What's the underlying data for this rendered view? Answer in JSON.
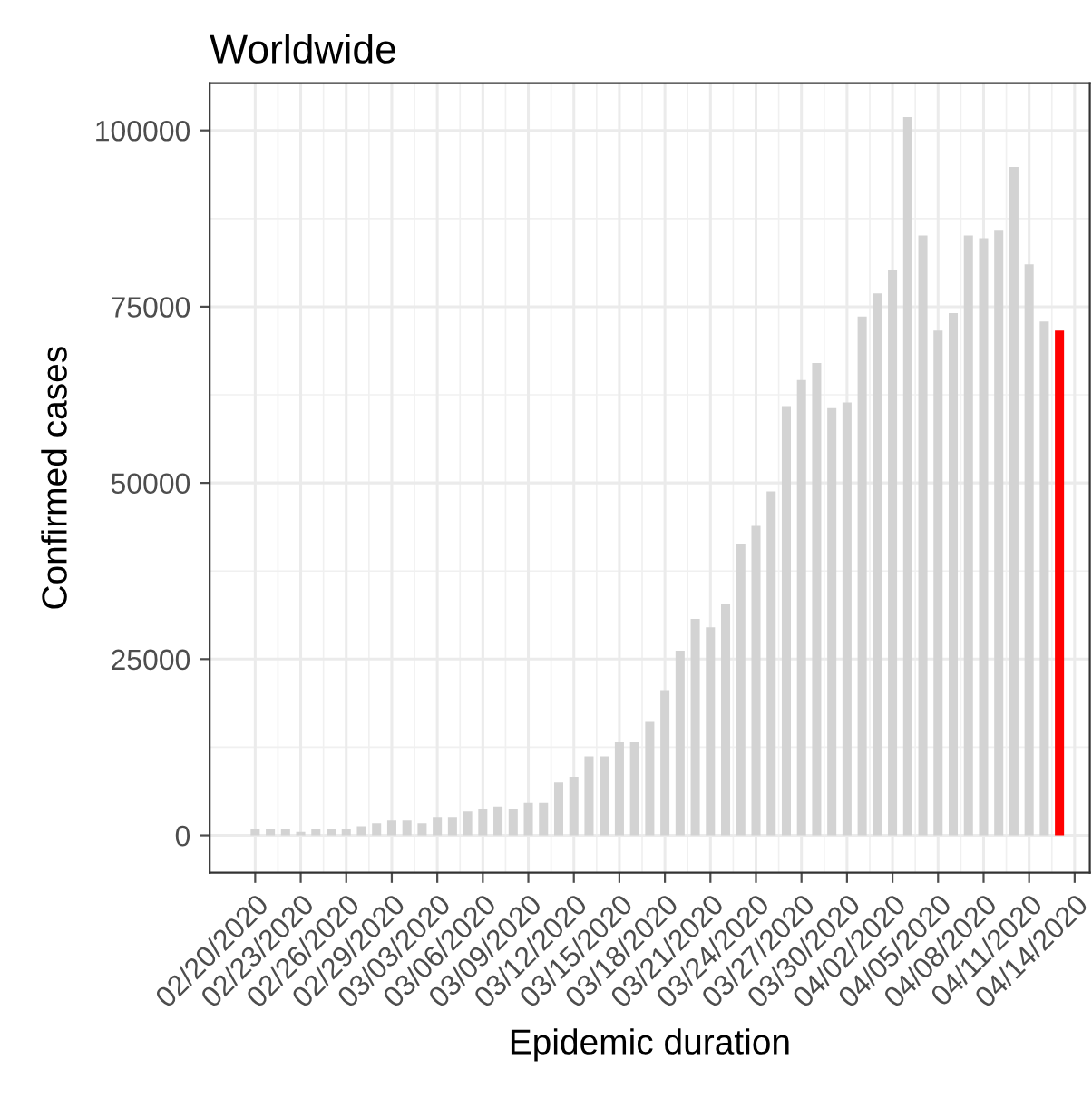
{
  "chart_data": {
    "type": "bar",
    "title": "Worldwide",
    "xlabel": "Epidemic duration",
    "ylabel": "Confirmed cases",
    "x": [
      "2020-02-20",
      "2020-02-21",
      "2020-02-22",
      "2020-02-23",
      "2020-02-24",
      "2020-02-25",
      "2020-02-26",
      "2020-02-27",
      "2020-02-28",
      "2020-02-29",
      "2020-03-01",
      "2020-03-02",
      "2020-03-03",
      "2020-03-04",
      "2020-03-05",
      "2020-03-06",
      "2020-03-07",
      "2020-03-08",
      "2020-03-09",
      "2020-03-10",
      "2020-03-11",
      "2020-03-12",
      "2020-03-13",
      "2020-03-14",
      "2020-03-15",
      "2020-03-16",
      "2020-03-17",
      "2020-03-18",
      "2020-03-19",
      "2020-03-20",
      "2020-03-21",
      "2020-03-22",
      "2020-03-23",
      "2020-03-24",
      "2020-03-25",
      "2020-03-26",
      "2020-03-27",
      "2020-03-28",
      "2020-03-29",
      "2020-03-30",
      "2020-03-31",
      "2020-04-01",
      "2020-04-02",
      "2020-04-03",
      "2020-04-04",
      "2020-04-05",
      "2020-04-06",
      "2020-04-07",
      "2020-04-08",
      "2020-04-09",
      "2020-04-10",
      "2020-04-11",
      "2020-04-12",
      "2020-04-13"
    ],
    "values": [
      900,
      900,
      900,
      500,
      900,
      900,
      900,
      1300,
      1700,
      2100,
      2100,
      1700,
      2600,
      2600,
      3400,
      3800,
      4100,
      3800,
      4600,
      4600,
      7500,
      8300,
      11200,
      11200,
      13200,
      13200,
      16100,
      20600,
      26200,
      30700,
      29500,
      32800,
      41400,
      43900,
      48800,
      60900,
      64600,
      67000,
      60600,
      61400,
      73600,
      76900,
      80200,
      101900,
      85100,
      71600,
      74100,
      85100,
      84700,
      85900,
      94800,
      81000,
      72900,
      71600
    ],
    "colors": [
      "#d3d3d3",
      "#d3d3d3",
      "#d3d3d3",
      "#d3d3d3",
      "#d3d3d3",
      "#d3d3d3",
      "#d3d3d3",
      "#d3d3d3",
      "#d3d3d3",
      "#d3d3d3",
      "#d3d3d3",
      "#d3d3d3",
      "#d3d3d3",
      "#d3d3d3",
      "#d3d3d3",
      "#d3d3d3",
      "#d3d3d3",
      "#d3d3d3",
      "#d3d3d3",
      "#d3d3d3",
      "#d3d3d3",
      "#d3d3d3",
      "#d3d3d3",
      "#d3d3d3",
      "#d3d3d3",
      "#d3d3d3",
      "#d3d3d3",
      "#d3d3d3",
      "#d3d3d3",
      "#d3d3d3",
      "#d3d3d3",
      "#d3d3d3",
      "#d3d3d3",
      "#d3d3d3",
      "#d3d3d3",
      "#d3d3d3",
      "#d3d3d3",
      "#d3d3d3",
      "#d3d3d3",
      "#d3d3d3",
      "#d3d3d3",
      "#d3d3d3",
      "#d3d3d3",
      "#d3d3d3",
      "#d3d3d3",
      "#d3d3d3",
      "#d3d3d3",
      "#d3d3d3",
      "#d3d3d3",
      "#d3d3d3",
      "#d3d3d3",
      "#d3d3d3",
      "#d3d3d3",
      "#ff0000"
    ],
    "xlim": [
      "2020-02-17",
      "2020-04-15"
    ],
    "xticks": [
      {
        "value": "2020-02-20",
        "label": "02/20/2020"
      },
      {
        "value": "2020-02-23",
        "label": "02/23/2020"
      },
      {
        "value": "2020-02-26",
        "label": "02/26/2020"
      },
      {
        "value": "2020-02-29",
        "label": "02/29/2020"
      },
      {
        "value": "2020-03-03",
        "label": "03/03/2020"
      },
      {
        "value": "2020-03-06",
        "label": "03/06/2020"
      },
      {
        "value": "2020-03-09",
        "label": "03/09/2020"
      },
      {
        "value": "2020-03-12",
        "label": "03/12/2020"
      },
      {
        "value": "2020-03-15",
        "label": "03/15/2020"
      },
      {
        "value": "2020-03-18",
        "label": "03/18/2020"
      },
      {
        "value": "2020-03-21",
        "label": "03/21/2020"
      },
      {
        "value": "2020-03-24",
        "label": "03/24/2020"
      },
      {
        "value": "2020-03-27",
        "label": "03/27/2020"
      },
      {
        "value": "2020-03-30",
        "label": "03/30/2020"
      },
      {
        "value": "2020-04-02",
        "label": "04/02/2020"
      },
      {
        "value": "2020-04-05",
        "label": "04/05/2020"
      },
      {
        "value": "2020-04-08",
        "label": "04/08/2020"
      },
      {
        "value": "2020-04-11",
        "label": "04/11/2020"
      },
      {
        "value": "2020-04-14",
        "label": "04/14/2020"
      }
    ],
    "ylim": [
      -5300,
      106700
    ],
    "yticks": [
      0,
      25000,
      50000,
      75000,
      100000
    ],
    "grid": true
  }
}
